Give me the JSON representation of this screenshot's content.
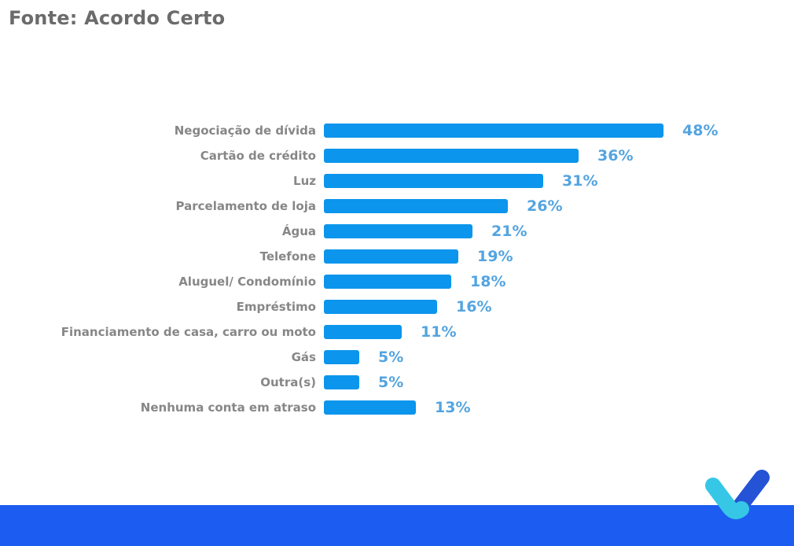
{
  "source": {
    "label": "Fonte: Acordo Certo"
  },
  "chart_data": {
    "type": "bar",
    "orientation": "horizontal",
    "title": "",
    "xlabel": "",
    "ylabel": "",
    "xlim": [
      0,
      48
    ],
    "grid": false,
    "legend": null,
    "value_suffix": "%",
    "categories": [
      "Negociação de dívida",
      "Cartão de crédito",
      "Luz",
      "Parcelamento de loja",
      "Água",
      "Telefone",
      "Aluguel/ Condomínio",
      "Empréstimo",
      "Financiamento de casa, carro ou moto",
      "Gás",
      "Outra(s)",
      "Nenhuma conta em atraso"
    ],
    "values": [
      48,
      36,
      31,
      26,
      21,
      19,
      18,
      16,
      11,
      5,
      5,
      13
    ],
    "bar_color": "#0b95ec",
    "value_label_color": "#54a4e0",
    "category_label_color": "#878787"
  },
  "footer": {
    "band_color": "#1d5cf1",
    "logo": "acordo-certo-check-logo",
    "logo_colors": {
      "cyan": "#36c7e6",
      "blue": "#2453d6"
    }
  }
}
